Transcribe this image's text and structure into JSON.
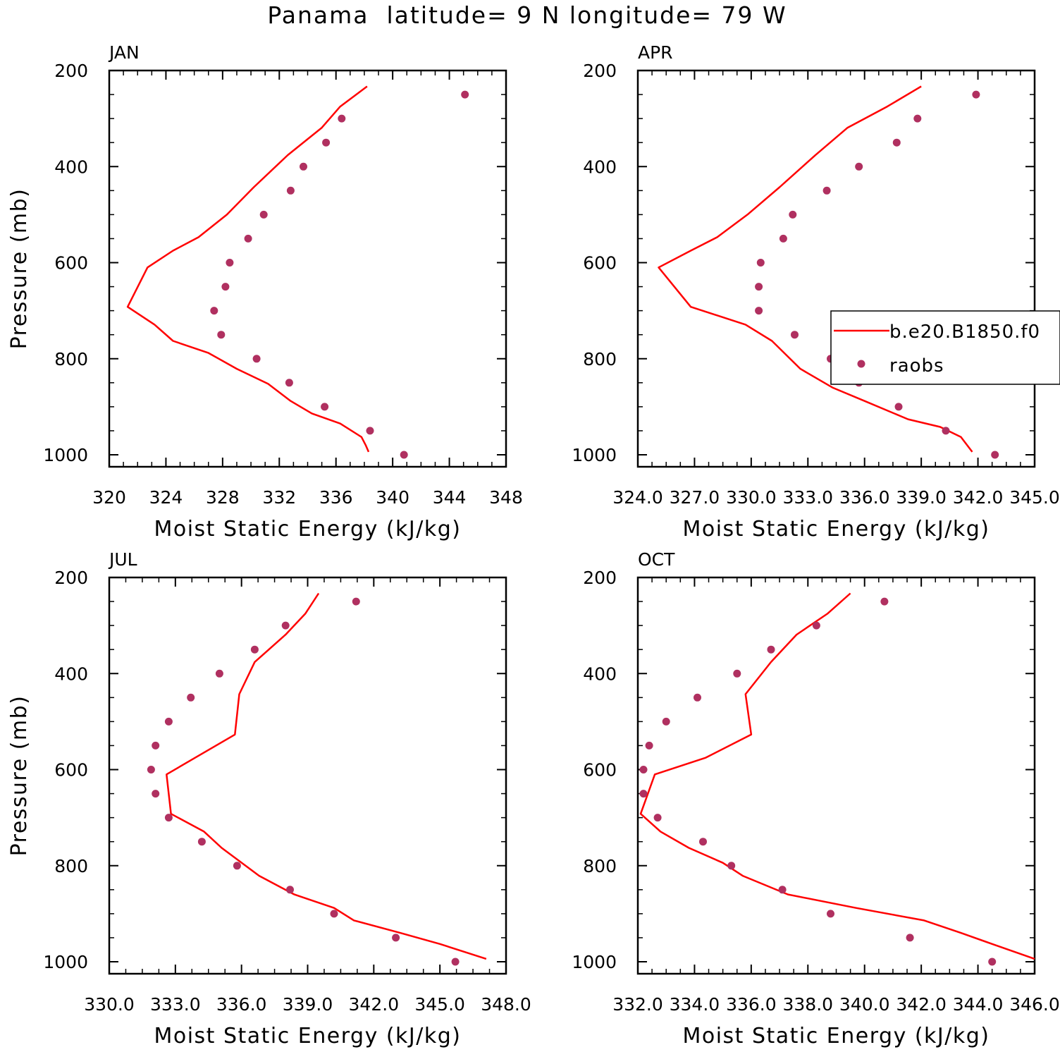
{
  "figure": {
    "title": "Panama  latitude= 9 N longitude= 79 W"
  },
  "colors": {
    "model_line": "#ff0000",
    "raobs_marker": "#b03060",
    "axes": "#000000"
  },
  "legend": {
    "entries": [
      {
        "label": "b.e20.B1850.f0",
        "style": "line"
      },
      {
        "label": "raobs",
        "style": "marker"
      }
    ]
  },
  "chart_data": [
    {
      "type": "line",
      "panel": "JAN",
      "xlabel": "Moist Static Energy (kJ/kg)",
      "ylabel": "Pressure (mb)",
      "xlim": [
        320,
        348
      ],
      "ylim": [
        1000,
        200
      ],
      "xticks": [
        320,
        324,
        328,
        332,
        336,
        340,
        344,
        348
      ],
      "xtick_labels": [
        "320",
        "324",
        "328",
        "332",
        "336",
        "340",
        "344",
        "348"
      ],
      "yticks": [
        200,
        400,
        600,
        800,
        1000
      ],
      "ytick_labels": [
        "200",
        "400",
        "600",
        "800",
        "1000"
      ],
      "series": [
        {
          "name": "b.e20.B1850.f0",
          "kind": "line",
          "x": [
            338.2,
            336.3,
            335.0,
            332.6,
            330.2,
            328.3,
            326.3,
            324.5,
            322.7,
            321.3,
            323.2,
            324.5,
            327.0,
            329.0,
            331.2,
            332.8,
            334.3,
            336.3,
            337.8,
            338.1,
            338.3
          ],
          "y": [
            233,
            275,
            319,
            376,
            443,
            500,
            547,
            575,
            610,
            692,
            729,
            763,
            788,
            821,
            852,
            888,
            914,
            935,
            963,
            980,
            994
          ]
        },
        {
          "name": "raobs",
          "kind": "scatter",
          "x": [
            345.1,
            336.4,
            335.3,
            333.7,
            332.8,
            330.9,
            329.8,
            328.5,
            328.2,
            327.4,
            327.9,
            330.4,
            332.7,
            335.2,
            338.4,
            340.8
          ],
          "y": [
            250,
            300,
            350,
            400,
            450,
            500,
            550,
            600,
            650,
            700,
            750,
            800,
            850,
            900,
            950,
            1000
          ]
        }
      ]
    },
    {
      "type": "line",
      "panel": "APR",
      "xlabel": "Moist Static Energy (kJ/kg)",
      "ylabel": "",
      "xlim": [
        324,
        345
      ],
      "ylim": [
        1000,
        200
      ],
      "xticks": [
        324,
        327,
        330,
        333,
        336,
        339,
        342,
        345
      ],
      "xtick_labels": [
        "324.0",
        "327.0",
        "330.0",
        "333.0",
        "336.0",
        "339.0",
        "342.0",
        "345.0"
      ],
      "yticks": [
        200,
        400,
        600,
        800,
        1000
      ],
      "ytick_labels": [
        "200",
        "400",
        "600",
        "800",
        "1000"
      ],
      "series": [
        {
          "name": "b.e20.B1850.f0",
          "kind": "line",
          "x": [
            339.0,
            337.2,
            335.1,
            333.4,
            331.5,
            329.8,
            328.2,
            326.8,
            325.1,
            326.8,
            329.7,
            331.1,
            332.6,
            334.3,
            336.0,
            338.3,
            340.0,
            341.1,
            341.7
          ],
          "y": [
            233,
            275,
            319,
            376,
            443,
            500,
            547,
            575,
            610,
            692,
            729,
            763,
            821,
            860,
            888,
            926,
            942,
            963,
            994
          ]
        },
        {
          "name": "raobs",
          "kind": "scatter",
          "x": [
            341.9,
            338.8,
            337.7,
            335.7,
            334.0,
            332.2,
            331.7,
            330.5,
            330.4,
            330.4,
            332.3,
            334.2,
            335.7,
            337.8,
            340.3,
            342.9
          ],
          "y": [
            250,
            300,
            350,
            400,
            450,
            500,
            550,
            600,
            650,
            700,
            750,
            800,
            850,
            900,
            950,
            1000
          ]
        }
      ]
    },
    {
      "type": "line",
      "panel": "JUL",
      "xlabel": "Moist Static Energy (kJ/kg)",
      "ylabel": "Pressure (mb)",
      "xlim": [
        330,
        348
      ],
      "ylim": [
        1000,
        200
      ],
      "xticks": [
        330,
        333,
        336,
        339,
        342,
        345,
        348
      ],
      "xtick_labels": [
        "330.0",
        "333.0",
        "336.0",
        "339.0",
        "342.0",
        "345.0",
        "348.0"
      ],
      "yticks": [
        200,
        400,
        600,
        800,
        1000
      ],
      "ytick_labels": [
        "200",
        "400",
        "600",
        "800",
        "1000"
      ],
      "series": [
        {
          "name": "b.e20.B1850.f0",
          "kind": "line",
          "x": [
            339.5,
            338.9,
            338.0,
            336.6,
            335.9,
            335.7,
            332.6,
            332.8,
            334.3,
            335.1,
            336.8,
            338.4,
            340.2,
            341.1,
            343.2,
            345.0,
            347.1
          ],
          "y": [
            233,
            275,
            319,
            376,
            443,
            527,
            610,
            692,
            729,
            763,
            821,
            860,
            888,
            914,
            940,
            963,
            994
          ]
        },
        {
          "name": "raobs",
          "kind": "scatter",
          "x": [
            341.2,
            338.0,
            336.6,
            335.0,
            333.7,
            332.7,
            332.1,
            331.9,
            332.1,
            332.7,
            334.2,
            335.8,
            338.2,
            340.2,
            343.0,
            345.7
          ],
          "y": [
            250,
            300,
            350,
            400,
            450,
            500,
            550,
            600,
            650,
            700,
            750,
            800,
            850,
            900,
            950,
            1000
          ]
        }
      ]
    },
    {
      "type": "line",
      "panel": "OCT",
      "xlabel": "Moist Static Energy (kJ/kg)",
      "ylabel": "",
      "xlim": [
        332,
        346
      ],
      "ylim": [
        1000,
        200
      ],
      "xticks": [
        332,
        334,
        336,
        338,
        340,
        342,
        344,
        346
      ],
      "xtick_labels": [
        "332.0",
        "334.0",
        "336.0",
        "338.0",
        "340.0",
        "342.0",
        "344.0",
        "346.0"
      ],
      "yticks": [
        200,
        400,
        600,
        800,
        1000
      ],
      "ytick_labels": [
        "200",
        "400",
        "600",
        "800",
        "1000"
      ],
      "series": [
        {
          "name": "b.e20.B1850.f0",
          "kind": "line",
          "x": [
            339.5,
            338.7,
            337.6,
            336.7,
            335.8,
            336.0,
            334.4,
            332.6,
            332.1,
            332.8,
            333.8,
            335.0,
            335.7,
            337.3,
            339.7,
            342.1,
            343.4,
            344.5,
            346.0
          ],
          "y": [
            233,
            275,
            319,
            376,
            443,
            527,
            575,
            610,
            692,
            729,
            763,
            794,
            821,
            860,
            888,
            914,
            940,
            963,
            994
          ]
        },
        {
          "name": "raobs",
          "kind": "scatter",
          "x": [
            340.7,
            338.3,
            336.7,
            335.5,
            334.1,
            333.0,
            332.4,
            332.2,
            332.2,
            332.7,
            334.3,
            335.3,
            337.1,
            338.8,
            341.6,
            344.5
          ],
          "y": [
            250,
            300,
            350,
            400,
            450,
            500,
            550,
            600,
            650,
            700,
            750,
            800,
            850,
            900,
            950,
            1000
          ]
        }
      ]
    }
  ]
}
